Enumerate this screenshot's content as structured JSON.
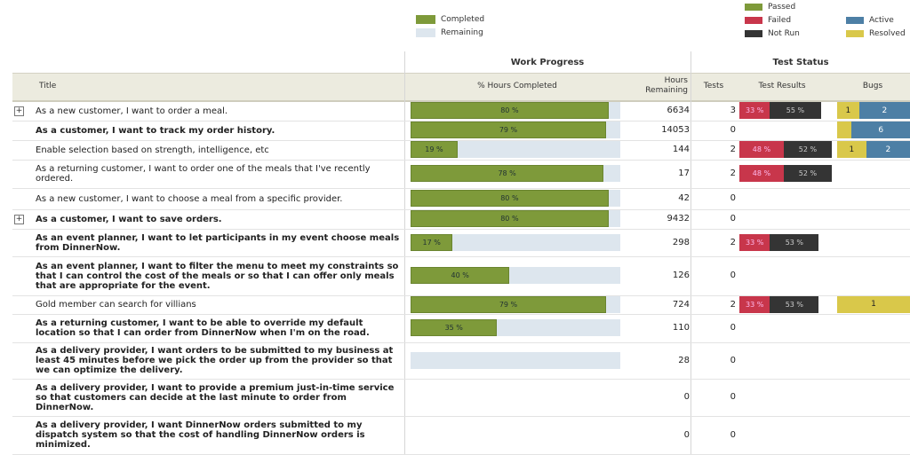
{
  "legend_progress": {
    "completed": {
      "label": "Completed",
      "color": "#7e9a3a"
    },
    "remaining": {
      "label": "Remaining",
      "color": "#dde6ee"
    }
  },
  "legend_status": {
    "passed": {
      "label": "Passed",
      "color": "#7e9a3a"
    },
    "failed": {
      "label": "Failed",
      "color": "#c8364b"
    },
    "not_run": {
      "label": "Not Run",
      "color": "#343434"
    },
    "active": {
      "label": "Active",
      "color": "#4d7fa5"
    },
    "resolved": {
      "label": "Resolved",
      "color": "#d9c84a"
    }
  },
  "groups": {
    "work_progress": "Work Progress",
    "test_status": "Test Status"
  },
  "columns": {
    "title": "Title",
    "pct_hours": "% Hours Completed",
    "hours_remaining": "Hours Remaining",
    "tests": "Tests",
    "test_results": "Test Results",
    "bugs": "Bugs"
  },
  "rows": [
    {
      "title": "As a new customer, I want to order a meal.",
      "bold": false,
      "expander": "+",
      "pct": 80,
      "pct_label": "80 %",
      "hours": "6634",
      "tests": "3",
      "failed_label": "33 %",
      "failed": 33,
      "notrun_label": "55 %",
      "notrun": 55,
      "bugs_resolved": "1",
      "bugs_active": "2",
      "resolved_w": 0.3,
      "active_w": 0.7
    },
    {
      "title": "As a customer, I want to track my order history.",
      "bold": true,
      "expander": "",
      "pct": 79,
      "pct_label": "79 %",
      "hours": "14053",
      "tests": "0",
      "bugs_resolved": "",
      "bugs_active": "6",
      "resolved_w": 0.2,
      "active_w": 0.8
    },
    {
      "title": "Enable selection based on strength, intelligence, etc",
      "bold": false,
      "expander": "",
      "pct": 19,
      "pct_label": "19 %",
      "hours": "144",
      "tests": "2",
      "failed_label": "48 %",
      "failed": 48,
      "notrun_label": "52 %",
      "notrun": 52,
      "bugs_resolved": "1",
      "bugs_active": "2",
      "resolved_w": 0.4,
      "active_w": 0.6
    },
    {
      "title": "As a returning customer, I want to order one of the meals that I've recently ordered.",
      "bold": false,
      "expander": "",
      "pct": 78,
      "pct_label": "78 %",
      "hours": "17",
      "tests": "2",
      "failed_label": "48 %",
      "failed": 48,
      "notrun_label": "52 %",
      "notrun": 52
    },
    {
      "title": "As a new customer, I want to choose a meal from a specific provider.",
      "bold": false,
      "expander": "",
      "pct": 80,
      "pct_label": "80 %",
      "hours": "42",
      "tests": "0"
    },
    {
      "title": "As a customer, I want to save orders.",
      "bold": true,
      "expander": "+",
      "pct": 80,
      "pct_label": "80 %",
      "hours": "9432",
      "tests": "0"
    },
    {
      "title": "As an event planner, I want to let participants in my event choose meals from DinnerNow.",
      "bold": true,
      "expander": "",
      "pct": 17,
      "pct_label": "17 %",
      "hours": "298",
      "tests": "2",
      "failed_label": "33 %",
      "failed": 33,
      "notrun_label": "53 %",
      "notrun": 53
    },
    {
      "title": "As an event planner, I want to filter the menu to meet my constraints so that I can control the cost of the meals or so that I can offer only meals that are appropriate for the event.",
      "bold": true,
      "expander": "",
      "pct": 40,
      "pct_label": "40 %",
      "hours": "126",
      "tests": "0"
    },
    {
      "title": "Gold member can search for villians",
      "bold": false,
      "expander": "",
      "pct": 79,
      "pct_label": "79 %",
      "hours": "724",
      "tests": "2",
      "failed_label": "33 %",
      "failed": 33,
      "notrun_label": "53 %",
      "notrun": 53,
      "bugs_resolved": "1",
      "bugs_active": "",
      "resolved_w": 1,
      "active_w": 0
    },
    {
      "title": "As a returning customer, I want to be able to override my default location so that I can order from DinnerNow when I'm on the road.",
      "bold": true,
      "expander": "",
      "pct": 35,
      "pct_label": "35 %",
      "hours": "110",
      "tests": "0"
    },
    {
      "title": "As a delivery provider, I want orders to be submitted to my business at least 45 minutes before we pick the order up from the provider so that we can optimize the delivery.",
      "bold": true,
      "expander": "",
      "pct": 0,
      "pct_label": "",
      "hours": "28",
      "tests": "0"
    },
    {
      "title": "As a delivery provider, I want to provide a premium just-in-time service so that customers can decide at the last minute to order from DinnerNow.",
      "bold": true,
      "expander": "",
      "pct": null,
      "pct_label": "",
      "hours": "0",
      "tests": "0"
    },
    {
      "title": "As a delivery provider, I want DinnerNow orders submitted to my dispatch system so that the cost of handling DinnerNow orders is minimized.",
      "bold": true,
      "expander": "",
      "pct": null,
      "pct_label": "",
      "hours": "0",
      "tests": "0"
    }
  ]
}
